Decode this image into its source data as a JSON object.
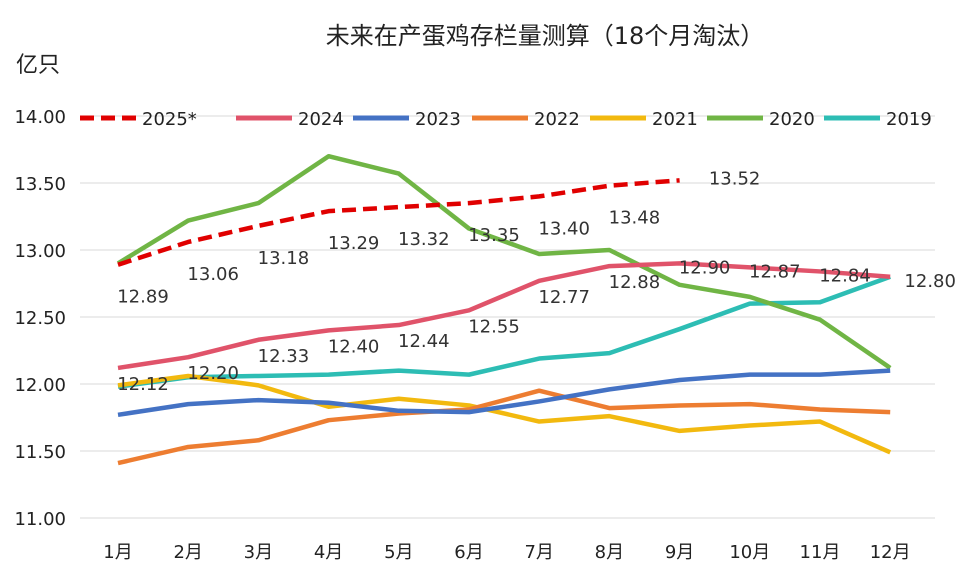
{
  "chart_data": {
    "type": "line",
    "title": "未来在产蛋鸡存栏量测算（18个月淘汰）",
    "ylabel": "亿只",
    "ylim": [
      11,
      14
    ],
    "categories": [
      "1月",
      "2月",
      "3月",
      "4月",
      "5月",
      "6月",
      "7月",
      "8月",
      "9月",
      "10月",
      "11月",
      "12月"
    ],
    "series": [
      {
        "name": "2025*",
        "color": "#e00000",
        "dash": true,
        "values": [
          12.89,
          13.06,
          13.18,
          13.29,
          13.32,
          13.35,
          13.4,
          13.48,
          13.52,
          null,
          null,
          null
        ]
      },
      {
        "name": "2024",
        "color": "#e0536a",
        "values": [
          12.12,
          12.2,
          12.33,
          12.4,
          12.44,
          12.55,
          12.77,
          12.88,
          12.9,
          12.87,
          12.84,
          12.8
        ]
      },
      {
        "name": "2023",
        "color": "#4472c4",
        "values": [
          11.77,
          11.85,
          11.88,
          11.86,
          11.8,
          11.79,
          11.87,
          11.96,
          12.03,
          12.07,
          12.07,
          12.1
        ]
      },
      {
        "name": "2022",
        "color": "#ed7d31",
        "values": [
          11.41,
          11.53,
          11.58,
          11.73,
          11.78,
          11.81,
          11.95,
          11.82,
          11.84,
          11.85,
          11.81,
          11.79
        ]
      },
      {
        "name": "2021",
        "color": "#f2b90f",
        "values": [
          11.99,
          12.06,
          11.99,
          11.83,
          11.89,
          11.84,
          11.72,
          11.76,
          11.65,
          11.69,
          11.72,
          11.49
        ]
      },
      {
        "name": "2020",
        "color": "#70b545",
        "values": [
          12.9,
          13.22,
          13.35,
          13.7,
          13.57,
          13.16,
          12.97,
          13,
          12.74,
          12.65,
          12.48,
          12.12
        ]
      },
      {
        "name": "2019",
        "color": "#2dbdb4",
        "values": [
          11.98,
          12.05,
          12.06,
          12.07,
          12.1,
          12.07,
          12.19,
          12.23,
          12.41,
          12.6,
          12.61,
          12.8
        ]
      }
    ],
    "labels": {
      "2025*": [
        "12.89",
        "13.06",
        "13.18",
        "13.29",
        "13.32",
        "13.35",
        "13.40",
        "13.48",
        "13.52"
      ],
      "2024": [
        "12.12",
        "12.20",
        "12.33",
        "12.40",
        "12.44",
        "12.55",
        "12.77",
        "12.88",
        "12.90",
        "12.87",
        "12.84",
        "12.80"
      ]
    }
  }
}
